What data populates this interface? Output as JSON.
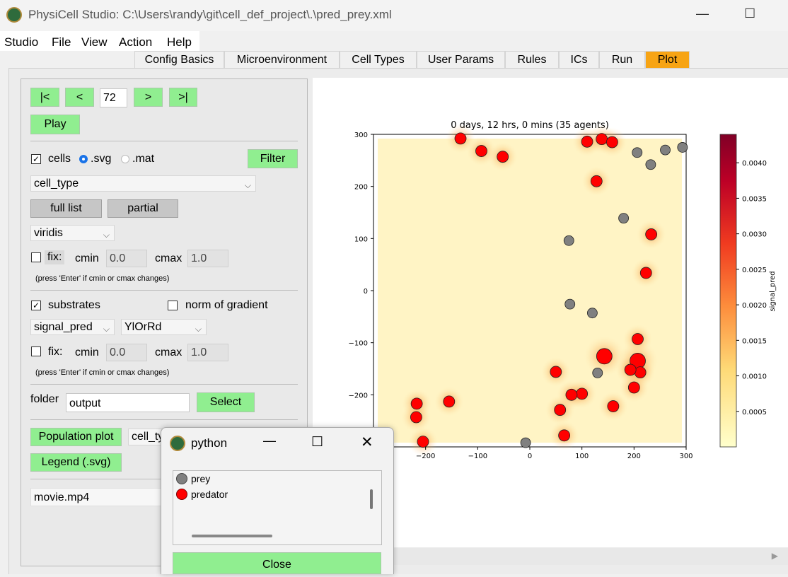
{
  "window": {
    "title": "PhysiCell Studio: C:\\Users\\randy\\git\\cell_def_project\\.\\pred_prey.xml",
    "minimize": "—",
    "maximize": "☐"
  },
  "menu": [
    "Studio",
    "File",
    "View",
    "Action",
    "Help"
  ],
  "tabs": [
    "Config Basics",
    "Microenvironment",
    "Cell Types",
    "User Params",
    "Rules",
    "ICs",
    "Run",
    "Plot"
  ],
  "active_tab": "Plot",
  "nav": {
    "first": "|<",
    "prev": "<",
    "frame": "72",
    "next": ">",
    "last": ">|",
    "play": "Play"
  },
  "cells": {
    "label": "cells",
    "checked": true,
    "svg_label": ".svg",
    "mat_label": ".mat",
    "filter": "Filter",
    "scalar": "cell_type",
    "full_list": "full list",
    "partial": "partial",
    "cmap": "viridis",
    "fix_label": "fix:",
    "cmin_label": "cmin",
    "cmin": "0.0",
    "cmax_label": "cmax",
    "cmax": "1.0",
    "hint": "(press 'Enter' if cmin or cmax changes)"
  },
  "substrates": {
    "label": "substrates",
    "checked": true,
    "gradient_label": "norm of gradient",
    "substrate": "signal_pred",
    "cmap": "YlOrRd",
    "fix_label": "fix:",
    "cmin_label": "cmin",
    "cmin": "0.0",
    "cmax_label": "cmax",
    "cmax": "1.0",
    "hint": "(press 'Enter' if cmin or cmax changes)"
  },
  "folder": {
    "label": "folder",
    "value": "output",
    "select": "Select"
  },
  "population_plot": "Population plot",
  "population_combo": "cell_ty",
  "legend_button": "Legend (.svg)",
  "movie": "movie.mp4",
  "plot_title": "0 days, 12 hrs, 0 mins (35 agents)",
  "colorbar_label": "signal_pred",
  "colors": {
    "prey": "#808080",
    "predator": "#ff0000",
    "active_tab": "#f7a414",
    "button": "#90ee90"
  },
  "python_window": {
    "title": "python",
    "legend": [
      {
        "label": "prey",
        "color": "#808080"
      },
      {
        "label": "predator",
        "color": "#ff0000"
      }
    ],
    "close": "Close"
  },
  "chart_data": {
    "type": "scatter",
    "title": "0 days, 12 hrs, 0 mins (35 agents)",
    "xlim": [
      -300,
      300
    ],
    "ylim": [
      -300,
      300
    ],
    "xticks": [
      "−200",
      "−100",
      "0",
      "100",
      "200",
      "300"
    ],
    "yticks": [
      "300",
      "200",
      "100",
      "0",
      "−100",
      "−200"
    ],
    "colorbar": {
      "label": "signal_pred",
      "colormap": "YlOrRd",
      "range": [
        0,
        0.0044
      ],
      "ticks": [
        "0.0040",
        "0.0035",
        "0.0030",
        "0.0025",
        "0.0020",
        "0.0015",
        "0.0010",
        "0.0005"
      ]
    },
    "series": [
      {
        "name": "prey",
        "color": "#808080",
        "points": [
          [
            206,
            265
          ],
          [
            260,
            270
          ],
          [
            293,
            275
          ],
          [
            232,
            242
          ],
          [
            180,
            139
          ],
          [
            75,
            96
          ],
          [
            77,
            -26
          ],
          [
            120,
            -43
          ],
          [
            130,
            -158
          ],
          [
            -8,
            -292
          ]
        ]
      },
      {
        "name": "predator",
        "color": "#ff0000",
        "points": [
          [
            -133,
            292
          ],
          [
            -93,
            268
          ],
          [
            -52,
            257
          ],
          [
            110,
            286
          ],
          [
            138,
            291
          ],
          [
            158,
            285
          ],
          [
            128,
            210
          ],
          [
            233,
            108
          ],
          [
            223,
            34
          ],
          [
            207,
            -93
          ],
          [
            143,
            -126
          ],
          [
            207,
            -135
          ],
          [
            212,
            -157
          ],
          [
            193,
            -152
          ],
          [
            50,
            -156
          ],
          [
            200,
            -186
          ],
          [
            100,
            -198
          ],
          [
            80,
            -200
          ],
          [
            160,
            -222
          ],
          [
            58,
            -229
          ],
          [
            66,
            -278
          ],
          [
            -217,
            -217
          ],
          [
            -155,
            -213
          ],
          [
            -218,
            -243
          ],
          [
            -205,
            -290
          ]
        ]
      }
    ]
  }
}
